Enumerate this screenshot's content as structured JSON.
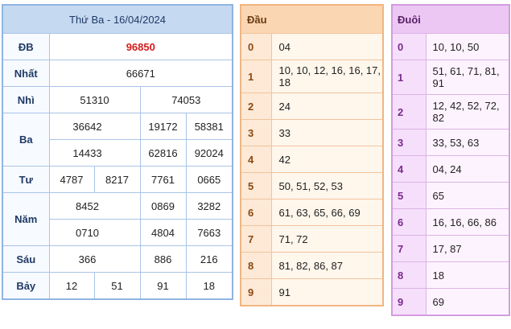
{
  "results": {
    "title": "Thứ Ba - 16/04/2024",
    "db": {
      "label": "ĐB",
      "value": "96850"
    },
    "nhat": {
      "label": "Nhất",
      "value": "66671"
    },
    "nhi": {
      "label": "Nhì",
      "values": [
        "51310",
        "74053"
      ]
    },
    "ba": {
      "label": "Ba",
      "values": [
        "36642",
        "19172",
        "58381",
        "14433",
        "62816",
        "92024"
      ]
    },
    "tu": {
      "label": "Tư",
      "values": [
        "4787",
        "8217",
        "7761",
        "0665"
      ]
    },
    "nam": {
      "label": "Năm",
      "values": [
        "8452",
        "0869",
        "3282",
        "0710",
        "4804",
        "7663"
      ]
    },
    "sau": {
      "label": "Sáu",
      "values": [
        "366",
        "886",
        "216"
      ]
    },
    "bay": {
      "label": "Bảy",
      "values": [
        "12",
        "51",
        "91",
        "18"
      ]
    }
  },
  "dau": {
    "title": "Đầu",
    "rows": [
      {
        "key": "0",
        "value": "04"
      },
      {
        "key": "1",
        "value": "10, 10, 12, 16, 16, 17, 18"
      },
      {
        "key": "2",
        "value": "24"
      },
      {
        "key": "3",
        "value": "33"
      },
      {
        "key": "4",
        "value": "42"
      },
      {
        "key": "5",
        "value": "50, 51, 52, 53"
      },
      {
        "key": "6",
        "value": "61, 63, 65, 66, 69"
      },
      {
        "key": "7",
        "value": "71, 72"
      },
      {
        "key": "8",
        "value": "81, 82, 86, 87"
      },
      {
        "key": "9",
        "value": "91"
      }
    ]
  },
  "duoi": {
    "title": "Đuôi",
    "rows": [
      {
        "key": "0",
        "value": "10, 10, 50"
      },
      {
        "key": "1",
        "value": "51, 61, 71, 81, 91"
      },
      {
        "key": "2",
        "value": "12, 42, 52, 72, 82"
      },
      {
        "key": "3",
        "value": "33, 53, 63"
      },
      {
        "key": "4",
        "value": "04, 24"
      },
      {
        "key": "5",
        "value": "65"
      },
      {
        "key": "6",
        "value": "16, 16, 66, 86"
      },
      {
        "key": "7",
        "value": "17, 87"
      },
      {
        "key": "8",
        "value": "18"
      },
      {
        "key": "9",
        "value": "69"
      }
    ]
  }
}
